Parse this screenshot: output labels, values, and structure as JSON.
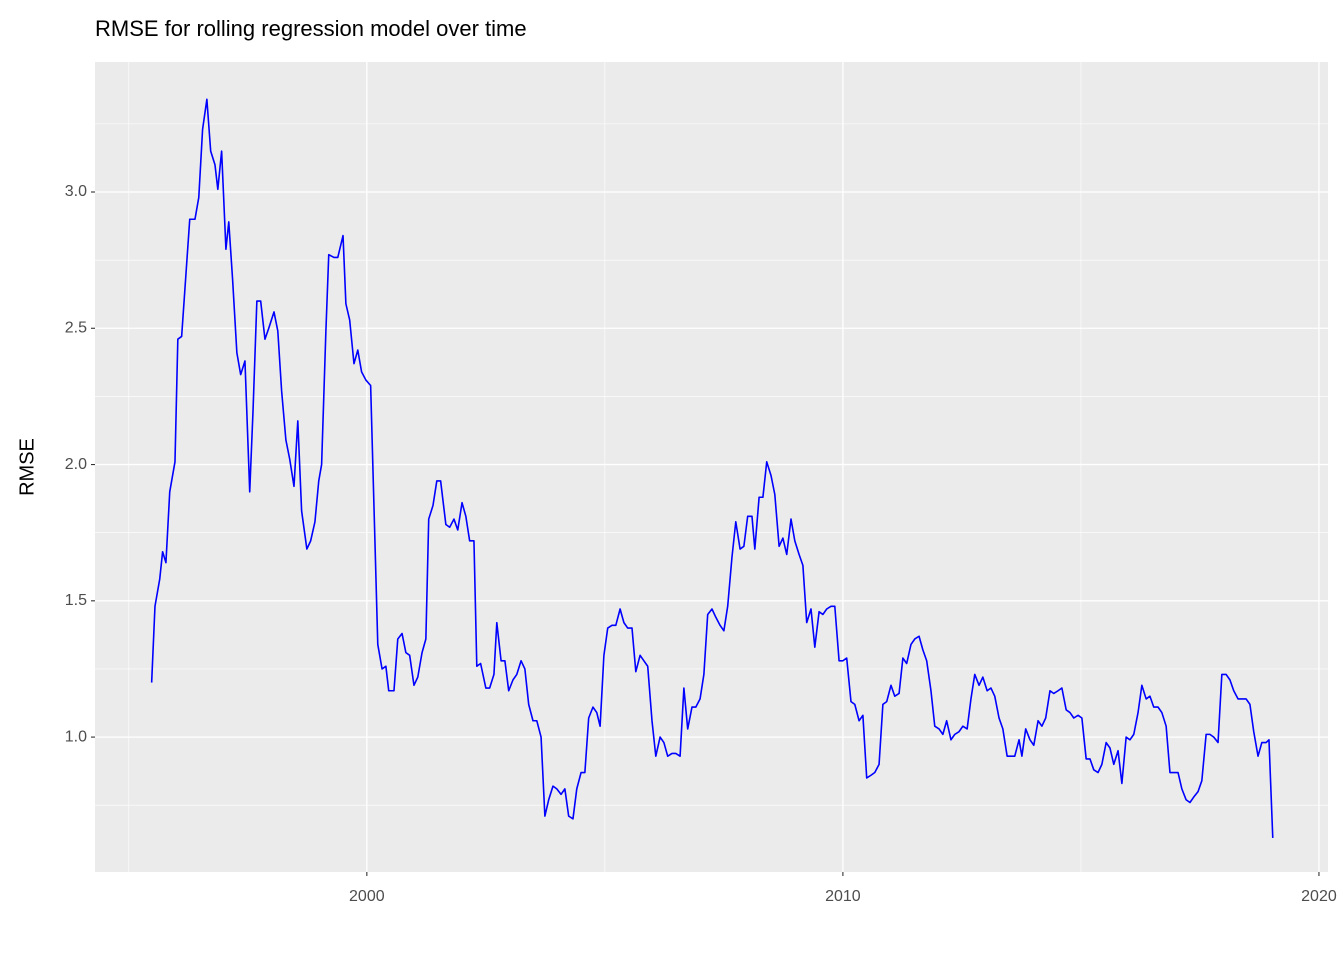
{
  "chart_data": {
    "type": "line",
    "title": "RMSE for rolling regression model over time",
    "y_label": "RMSE",
    "color": "#0000ff",
    "grid": true,
    "xlim": [
      1994.29,
      2020.19
    ],
    "ylim": [
      0.505,
      3.477
    ],
    "xticks": [
      2000,
      2010,
      2020
    ],
    "yticks": [
      {
        "value": 1,
        "label": "1.0"
      },
      {
        "value": 1.5,
        "label": "1.5"
      },
      {
        "value": 2,
        "label": "2.0"
      },
      {
        "value": 2.5,
        "label": "2.5"
      },
      {
        "value": 3,
        "label": "3.0"
      }
    ],
    "x": [
      1995.48,
      1995.55,
      1995.65,
      1995.71,
      1995.78,
      1995.86,
      1995.97,
      1996.03,
      1996.11,
      1996.28,
      1996.39,
      1996.47,
      1996.55,
      1996.64,
      1996.72,
      1996.81,
      1996.87,
      1996.95,
      1997.04,
      1997.1,
      1997.18,
      1997.27,
      1997.35,
      1997.44,
      1997.54,
      1997.61,
      1997.69,
      1997.77,
      1997.86,
      1997.94,
      1998.05,
      1998.13,
      1998.21,
      1998.3,
      1998.38,
      1998.47,
      1998.55,
      1998.63,
      1998.74,
      1998.82,
      1998.91,
      1998.99,
      1999.05,
      1999.14,
      1999.2,
      1999.31,
      1999.39,
      1999.5,
      1999.56,
      1999.64,
      1999.73,
      1999.81,
      1999.89,
      1999.98,
      2000.08,
      2000.23,
      2000.32,
      2000.4,
      2000.46,
      2000.57,
      2000.65,
      2000.74,
      2000.82,
      2000.9,
      2000.99,
      2001.07,
      2001.16,
      2001.24,
      2001.3,
      2001.39,
      2001.47,
      2001.55,
      2001.66,
      2001.74,
      2001.83,
      2001.91,
      2002.0,
      2002.08,
      2002.16,
      2002.25,
      2002.31,
      2002.39,
      2002.5,
      2002.58,
      2002.67,
      2002.73,
      2002.82,
      2002.9,
      2002.98,
      2003.07,
      2003.15,
      2003.24,
      2003.32,
      2003.4,
      2003.49,
      2003.57,
      2003.66,
      2003.74,
      2003.82,
      2003.91,
      2003.99,
      2004.08,
      2004.16,
      2004.24,
      2004.33,
      2004.41,
      2004.5,
      2004.58,
      2004.66,
      2004.75,
      2004.83,
      2004.9,
      2004.98,
      2005.06,
      2005.15,
      2005.23,
      2005.32,
      2005.4,
      2005.48,
      2005.57,
      2005.65,
      2005.74,
      2005.82,
      2005.9,
      2005.99,
      2006.07,
      2006.16,
      2006.24,
      2006.32,
      2006.41,
      2006.49,
      2006.58,
      2006.66,
      2006.74,
      2006.83,
      2006.91,
      2007.0,
      2007.08,
      2007.16,
      2007.25,
      2007.33,
      2007.42,
      2007.5,
      2007.58,
      2007.67,
      2007.75,
      2007.84,
      2007.92,
      2008.0,
      2008.09,
      2008.15,
      2008.24,
      2008.32,
      2008.4,
      2008.49,
      2008.57,
      2008.66,
      2008.74,
      2008.82,
      2008.91,
      2008.99,
      2009.08,
      2009.16,
      2009.24,
      2009.33,
      2009.41,
      2009.5,
      2009.58,
      2009.66,
      2009.75,
      2009.83,
      2009.92,
      2010.0,
      2010.08,
      2010.17,
      2010.25,
      2010.34,
      2010.42,
      2010.5,
      2010.59,
      2010.67,
      2010.76,
      2010.84,
      2010.92,
      2011.01,
      2011.09,
      2011.18,
      2011.26,
      2011.34,
      2011.43,
      2011.51,
      2011.6,
      2011.68,
      2011.76,
      2011.85,
      2011.93,
      2012.02,
      2012.1,
      2012.18,
      2012.27,
      2012.35,
      2012.44,
      2012.52,
      2012.61,
      2012.69,
      2012.77,
      2012.86,
      2012.94,
      2013.03,
      2013.11,
      2013.19,
      2013.28,
      2013.36,
      2013.45,
      2013.53,
      2013.61,
      2013.7,
      2013.76,
      2013.84,
      2013.93,
      2014.01,
      2014.1,
      2014.18,
      2014.26,
      2014.35,
      2014.43,
      2014.52,
      2014.6,
      2014.69,
      2014.77,
      2014.85,
      2014.94,
      2015.02,
      2015.11,
      2015.19,
      2015.27,
      2015.36,
      2015.44,
      2015.53,
      2015.61,
      2015.69,
      2015.78,
      2015.86,
      2015.95,
      2016.03,
      2016.11,
      2016.2,
      2016.28,
      2016.37,
      2016.45,
      2016.53,
      2016.62,
      2016.7,
      2016.79,
      2016.87,
      2016.95,
      2017.04,
      2017.12,
      2017.21,
      2017.29,
      2017.37,
      2017.46,
      2017.54,
      2017.63,
      2017.71,
      2017.79,
      2017.88,
      2017.96,
      2018.05,
      2018.13,
      2018.21,
      2018.3,
      2018.38,
      2018.47,
      2018.55,
      2018.63,
      2018.72,
      2018.8,
      2018.89,
      2018.95,
      2019.03
    ],
    "values": [
      1.2,
      1.48,
      1.58,
      1.68,
      1.64,
      1.9,
      2.01,
      2.46,
      2.47,
      2.9,
      2.9,
      2.98,
      3.23,
      3.34,
      3.15,
      3.1,
      3.01,
      3.15,
      2.79,
      2.89,
      2.68,
      2.41,
      2.33,
      2.38,
      1.9,
      2.2,
      2.6,
      2.6,
      2.46,
      2.5,
      2.56,
      2.49,
      2.27,
      2.09,
      2.02,
      1.92,
      2.16,
      1.83,
      1.69,
      1.72,
      1.79,
      1.94,
      2.0,
      2.49,
      2.77,
      2.76,
      2.76,
      2.84,
      2.59,
      2.53,
      2.37,
      2.42,
      2.34,
      2.31,
      2.29,
      1.34,
      1.25,
      1.26,
      1.17,
      1.17,
      1.36,
      1.38,
      1.31,
      1.3,
      1.19,
      1.22,
      1.31,
      1.36,
      1.8,
      1.85,
      1.94,
      1.94,
      1.78,
      1.77,
      1.8,
      1.76,
      1.86,
      1.81,
      1.72,
      1.72,
      1.26,
      1.27,
      1.18,
      1.18,
      1.23,
      1.42,
      1.28,
      1.28,
      1.17,
      1.21,
      1.23,
      1.28,
      1.25,
      1.12,
      1.06,
      1.06,
      1.0,
      0.71,
      0.77,
      0.82,
      0.81,
      0.79,
      0.81,
      0.71,
      0.7,
      0.81,
      0.87,
      0.87,
      1.07,
      1.11,
      1.09,
      1.04,
      1.3,
      1.4,
      1.41,
      1.41,
      1.47,
      1.42,
      1.4,
      1.4,
      1.24,
      1.3,
      1.28,
      1.26,
      1.06,
      0.93,
      1.0,
      0.98,
      0.93,
      0.94,
      0.94,
      0.93,
      1.18,
      1.03,
      1.11,
      1.11,
      1.14,
      1.23,
      1.45,
      1.47,
      1.44,
      1.41,
      1.39,
      1.48,
      1.66,
      1.79,
      1.69,
      1.7,
      1.81,
      1.81,
      1.69,
      1.88,
      1.88,
      2.01,
      1.96,
      1.89,
      1.7,
      1.73,
      1.67,
      1.8,
      1.72,
      1.67,
      1.63,
      1.42,
      1.47,
      1.33,
      1.46,
      1.45,
      1.47,
      1.48,
      1.48,
      1.28,
      1.28,
      1.29,
      1.13,
      1.12,
      1.06,
      1.08,
      0.85,
      0.86,
      0.87,
      0.9,
      1.12,
      1.13,
      1.19,
      1.15,
      1.16,
      1.29,
      1.27,
      1.34,
      1.36,
      1.37,
      1.32,
      1.28,
      1.17,
      1.04,
      1.03,
      1.01,
      1.06,
      0.99,
      1.01,
      1.02,
      1.04,
      1.03,
      1.14,
      1.23,
      1.19,
      1.22,
      1.17,
      1.18,
      1.15,
      1.07,
      1.03,
      0.93,
      0.93,
      0.93,
      0.99,
      0.93,
      1.03,
      0.99,
      0.97,
      1.06,
      1.04,
      1.07,
      1.17,
      1.16,
      1.17,
      1.18,
      1.1,
      1.09,
      1.07,
      1.08,
      1.07,
      0.92,
      0.92,
      0.88,
      0.87,
      0.9,
      0.98,
      0.96,
      0.9,
      0.95,
      0.83,
      1.0,
      0.99,
      1.01,
      1.09,
      1.19,
      1.14,
      1.15,
      1.11,
      1.11,
      1.09,
      1.04,
      0.87,
      0.87,
      0.87,
      0.81,
      0.77,
      0.76,
      0.78,
      0.8,
      0.84,
      1.01,
      1.01,
      1.0,
      0.98,
      1.23,
      1.23,
      1.21,
      1.17,
      1.14,
      1.14,
      1.14,
      1.12,
      1.02,
      0.93,
      0.98,
      0.98,
      0.99,
      0.63
    ]
  }
}
